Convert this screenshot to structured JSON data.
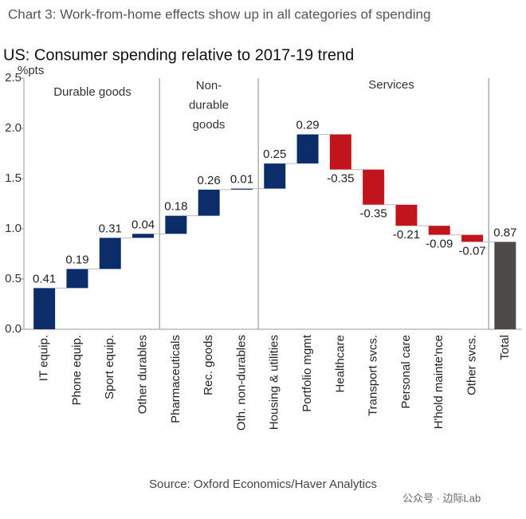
{
  "chart_data": {
    "type": "waterfall",
    "header": "Chart 3: Work-from-home effects show up in all categories of spending",
    "title": "US: Consumer spending relative to 2017-19 trend",
    "y_label": "%pts",
    "groups": [
      {
        "label": [
          "Durable goods"
        ]
      },
      {
        "label": [
          "Non-",
          "durable",
          "goods"
        ]
      },
      {
        "label": [
          "Services"
        ]
      }
    ],
    "categories": [
      "IT equip.",
      "Phone equip.",
      "Sport equip.",
      "Other durables",
      "Pharmaceuticals",
      "Rec. goods",
      "Oth. non-durables",
      "Housing & utilities",
      "Portfolio mgmt",
      "Healthcare",
      "Transport svcs.",
      "Personal care",
      "H'hold mainte'nce",
      "Other svcs."
    ],
    "values": [
      0.41,
      0.19,
      0.31,
      0.04,
      0.18,
      0.26,
      0.01,
      0.25,
      0.29,
      -0.35,
      -0.35,
      -0.21,
      -0.09,
      -0.07
    ],
    "total": {
      "category": "Total",
      "value": 0.87
    },
    "colors": {
      "increase": "#0c2d69",
      "decrease": "#c0151d",
      "total": "#4d4a4a"
    },
    "ylim": [
      0,
      2.5
    ],
    "yticks": [
      {
        "value": 0,
        "label": "0.0"
      },
      0.5,
      {
        "value": 1,
        "label": "1.0"
      },
      1.5,
      {
        "value": 2,
        "label": "2.0"
      },
      2.5
    ],
    "source": "Source: Oxford Economics/Haver Analytics",
    "watermark": "公众号 · 边际Lab"
  }
}
